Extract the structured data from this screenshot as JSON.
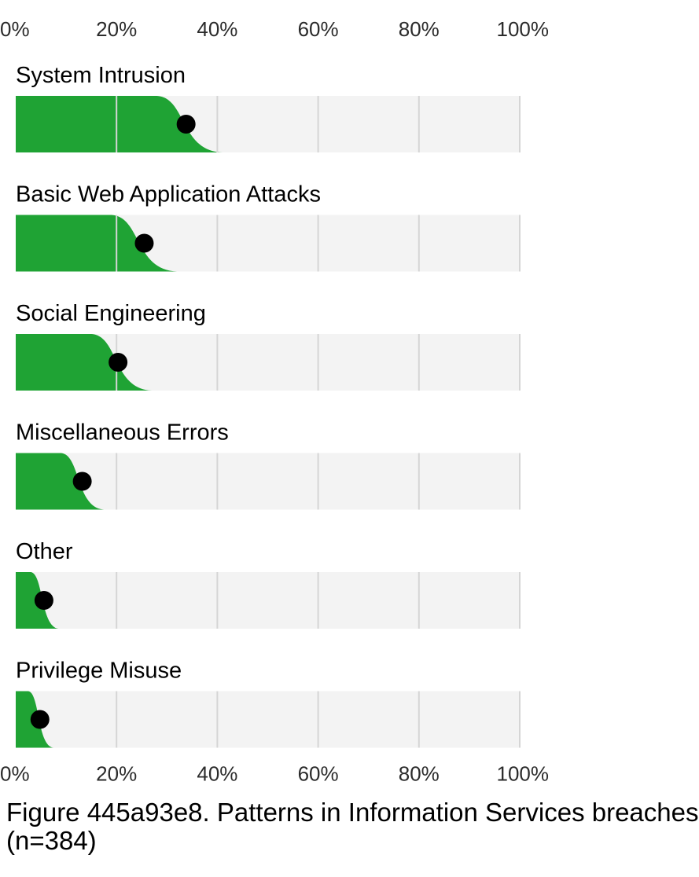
{
  "chart_data": {
    "type": "dot-with-distribution",
    "x_ticks": [
      "0%",
      "20%",
      "40%",
      "60%",
      "80%",
      "100%"
    ],
    "xlim": [
      0,
      100
    ],
    "series": [
      {
        "name": "System Intrusion",
        "value": 33.8,
        "dist_plateau": 28,
        "dist_end": 41
      },
      {
        "name": "Basic Web Application Attacks",
        "value": 25.5,
        "dist_plateau": 19,
        "dist_end": 32
      },
      {
        "name": "Social Engineering",
        "value": 20.3,
        "dist_plateau": 15,
        "dist_end": 27
      },
      {
        "name": "Miscellaneous Errors",
        "value": 13.2,
        "dist_plateau": 9,
        "dist_end": 17.5
      },
      {
        "name": "Other",
        "value": 5.6,
        "dist_plateau": 3,
        "dist_end": 8.5
      },
      {
        "name": "Privilege Misuse",
        "value": 4.8,
        "dist_plateau": 2.5,
        "dist_end": 7.5
      }
    ],
    "colors": {
      "distribution": "#1fa334",
      "dot": "#000000",
      "band": "#f3f3f3",
      "grid": "#d5d5d5"
    }
  },
  "caption": {
    "line1": "Figure 445a93e8. Patterns in Information Services breaches",
    "line2": "(n=384)"
  }
}
